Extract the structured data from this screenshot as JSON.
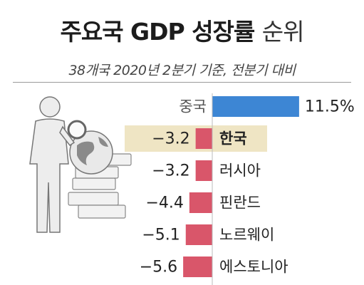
{
  "title_bold": "주요국 GDP 성장률",
  "title_light": "순위",
  "subtitle": "38개국 2020년 2분기 기준, 전분기 대비",
  "colors": {
    "positive": "#3d86d4",
    "negative": "#d9566a",
    "highlight_bg": "#efe5c4",
    "text": "#222222"
  },
  "chart_data": {
    "type": "bar",
    "orientation": "horizontal",
    "title": "주요국 GDP 성장률 순위",
    "subtitle": "38개국 2020년 2분기 기준, 전분기 대비",
    "unit": "%",
    "highlight": "한국",
    "categories": [
      "중국",
      "한국",
      "러시아",
      "핀란드",
      "노르웨이",
      "에스토니아"
    ],
    "values": [
      11.5,
      -3.2,
      -3.2,
      -4.4,
      -5.1,
      -5.6
    ],
    "labels": [
      "11.5%",
      "−3.2",
      "−3.2",
      "−4.4",
      "−5.1",
      "−5.6"
    ]
  }
}
